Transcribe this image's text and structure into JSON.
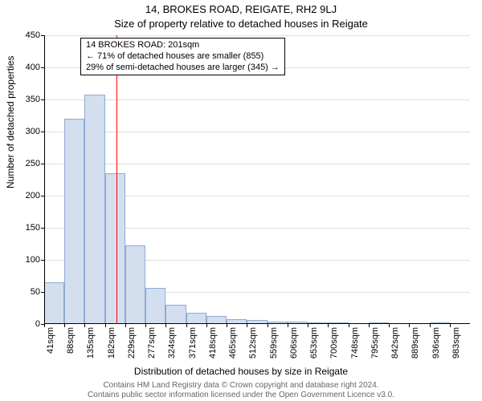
{
  "title_line1": "14, BROKES ROAD, REIGATE, RH2 9LJ",
  "title_line2": "Size of property relative to detached houses in Reigate",
  "ylabel": "Number of detached properties",
  "xlabel": "Distribution of detached houses by size in Reigate",
  "footer_line1": "Contains HM Land Registry data © Crown copyright and database right 2024.",
  "footer_line2": "Contains public sector information licensed under the Open Government Licence v3.0.",
  "chart": {
    "type": "histogram",
    "background_color": "#ffffff",
    "grid_color": "#dddddd",
    "axis_color": "#000000",
    "bar_fill": "#d3deef",
    "bar_stroke": "#8faad2",
    "ref_line_color": "#ff0000",
    "ylim": [
      0,
      450
    ],
    "ytick_step": 50,
    "yticks": [
      0,
      50,
      100,
      150,
      200,
      250,
      300,
      350,
      400,
      450
    ],
    "xtick_labels": [
      "41sqm",
      "88sqm",
      "135sqm",
      "182sqm",
      "229sqm",
      "277sqm",
      "324sqm",
      "371sqm",
      "418sqm",
      "465sqm",
      "512sqm",
      "559sqm",
      "606sqm",
      "653sqm",
      "700sqm",
      "748sqm",
      "795sqm",
      "842sqm",
      "889sqm",
      "936sqm",
      "983sqm"
    ],
    "bar_values": [
      65,
      320,
      358,
      235,
      123,
      56,
      30,
      18,
      12,
      8,
      6,
      4,
      4,
      3,
      3,
      0,
      2,
      0,
      0,
      2,
      0
    ],
    "ref_value_sqm": 201,
    "x_domain": [
      41,
      983
    ],
    "annotation": {
      "line1": "14 BROKES ROAD: 201sqm",
      "line2": "← 71% of detached houses are smaller (855)",
      "line3": "29% of semi-detached houses are larger (345) →",
      "box_border": "#000000",
      "box_bg": "#ffffff",
      "fontsize": 11
    }
  }
}
